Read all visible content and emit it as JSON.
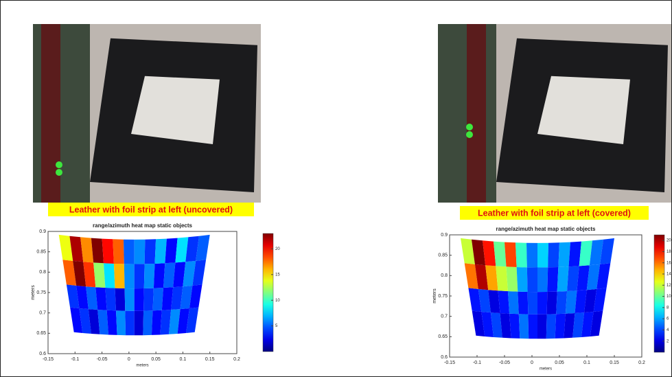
{
  "panels": [
    {
      "caption": "Leather with foil strip at left (uncovered)",
      "chart_data": {
        "type": "heatmap",
        "title": "range/azimuth heat map static objects",
        "x_label": "meters",
        "y_label": "meters",
        "xlim": [
          -0.15,
          0.2
        ],
        "xticks": [
          -0.15,
          -0.1,
          -0.05,
          0,
          0.05,
          0.1,
          0.15,
          0.2
        ],
        "ylim": [
          0.6,
          0.9
        ],
        "yticks": [
          0.6,
          0.65,
          0.7,
          0.75,
          0.8,
          0.85,
          0.9
        ],
        "x_edges": [
          -0.13,
          -0.11,
          -0.09,
          -0.07,
          -0.05,
          -0.03,
          -0.01,
          0.01,
          0.03,
          0.05,
          0.07,
          0.09,
          0.11,
          0.13,
          0.15
        ],
        "y_edges": [
          0.645,
          0.705,
          0.76,
          0.82,
          0.88
        ],
        "clim": [
          0,
          23
        ],
        "colorbar_ticks": [
          5,
          10,
          15,
          20
        ],
        "values": [
          [
            3,
            4,
            2,
            5,
            3,
            6,
            4,
            2,
            5,
            3,
            4,
            6,
            3,
            4
          ],
          [
            4,
            3,
            5,
            3,
            4,
            2,
            6,
            3,
            4,
            5,
            3,
            4,
            5,
            3
          ],
          [
            18,
            23,
            19,
            12,
            8,
            16,
            6,
            4,
            6,
            3,
            5,
            3,
            6,
            4
          ],
          [
            14,
            22,
            17,
            23,
            20,
            18,
            5,
            6,
            4,
            7,
            3,
            8,
            4,
            5
          ]
        ]
      }
    },
    {
      "caption": "Leather with foil strip at left (covered)",
      "chart_data": {
        "type": "heatmap",
        "title": "range/azimuth heat map static objects",
        "x_label": "meters",
        "y_label": "meters",
        "xlim": [
          -0.15,
          0.2
        ],
        "xticks": [
          -0.15,
          -0.1,
          -0.05,
          0,
          0.05,
          0.1,
          0.15,
          0.2
        ],
        "ylim": [
          0.6,
          0.9
        ],
        "yticks": [
          0.6,
          0.65,
          0.7,
          0.75,
          0.8,
          0.85,
          0.9
        ],
        "x_edges": [
          -0.13,
          -0.11,
          -0.09,
          -0.07,
          -0.05,
          -0.03,
          -0.01,
          0.01,
          0.03,
          0.05,
          0.07,
          0.09,
          0.11,
          0.13,
          0.15
        ],
        "y_edges": [
          0.645,
          0.705,
          0.76,
          0.82,
          0.88
        ],
        "clim": [
          0,
          21
        ],
        "colorbar_ticks": [
          2,
          4,
          6,
          8,
          10,
          12,
          14,
          16,
          18,
          20
        ],
        "values": [
          [
            2,
            3,
            4,
            2,
            3,
            5,
            3,
            2,
            4,
            3,
            2,
            4,
            3,
            2
          ],
          [
            3,
            4,
            2,
            3,
            5,
            3,
            4,
            3,
            2,
            4,
            5,
            3,
            2,
            3
          ],
          [
            16,
            20,
            15,
            12,
            11,
            6,
            4,
            5,
            3,
            6,
            4,
            3,
            5,
            3
          ],
          [
            12,
            21,
            18,
            10,
            17,
            9,
            5,
            7,
            4,
            6,
            3,
            9,
            5,
            4
          ]
        ]
      }
    }
  ]
}
